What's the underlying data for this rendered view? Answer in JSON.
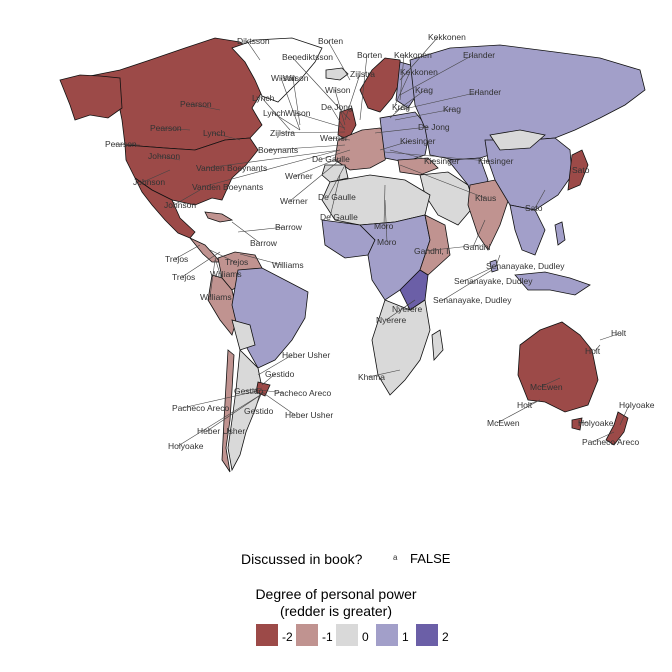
{
  "map_labels": [
    "Diktsson",
    "Borten",
    "Kekkonen",
    "Benediktsson",
    "Borten",
    "Kekkonen",
    "Erlander",
    "Wilson",
    "Zijlstra",
    "Kekkonen",
    "Wilson",
    "Wilson",
    "Krag",
    "Erlander",
    "Lynch",
    "De Jong",
    "Krag",
    "Pearson",
    "Lynch",
    "Wilson",
    "Krag",
    "Pearson",
    "Lynch",
    "Zijlstra",
    "De Jong",
    "Pearson",
    "Werner",
    "Kiesinger",
    "Boeynants",
    "De Gaulle",
    "Kiesinger",
    "Johnson",
    "Vanden Boeynants",
    "Kiesinger",
    "Sato",
    "Johnson",
    "Vanden Boeynants",
    "Werner",
    "Johnson",
    "Werner",
    "De Gaulle",
    "Sato",
    "Klaus",
    "De Gaulle",
    "Moro",
    "Gandhi",
    "Barrow",
    "Trejos",
    "Barrow",
    "Moro",
    "Gandhi, I.",
    "Trejos",
    "Williams",
    "Senanayake, Dudley",
    "Trejos",
    "Williams",
    "Senanayake, Dudley",
    "Williams",
    "Senanayake, Dudley",
    "Nyerere",
    "Holt",
    "Holt",
    "Heber Usher",
    "Nyerere",
    "Gestido",
    "McEwen",
    "Khama",
    "Gestido",
    "Pacheco Areco",
    "Holt",
    "Pacheco Areco",
    "Gestido",
    "Heber Usher",
    "McEwen",
    "Holyoake",
    "Heber Usher",
    "Holyoake",
    "Pacheco Areco",
    "Holyoake"
  ],
  "legend": {
    "discussed_title": "Discussed in book?",
    "discussed_key_symbol": "a",
    "discussed_value": "FALSE",
    "power_title_line1": "Degree of personal power",
    "power_title_line2": "(redder is greater)",
    "scale": [
      {
        "value": "-2",
        "color": "#9c4a48"
      },
      {
        "value": "-1",
        "color": "#c09390"
      },
      {
        "value": "0",
        "color": "#d9d9d9"
      },
      {
        "value": "1",
        "color": "#a29fc9"
      },
      {
        "value": "2",
        "color": "#6b5fa7"
      }
    ]
  },
  "colors": {
    "power_-2": "#9c4a48",
    "power_-1": "#c09390",
    "power_0": "#d9d9d9",
    "power_1": "#a29fc9",
    "power_2": "#6b5fa7",
    "no_data": "#ffffff"
  }
}
